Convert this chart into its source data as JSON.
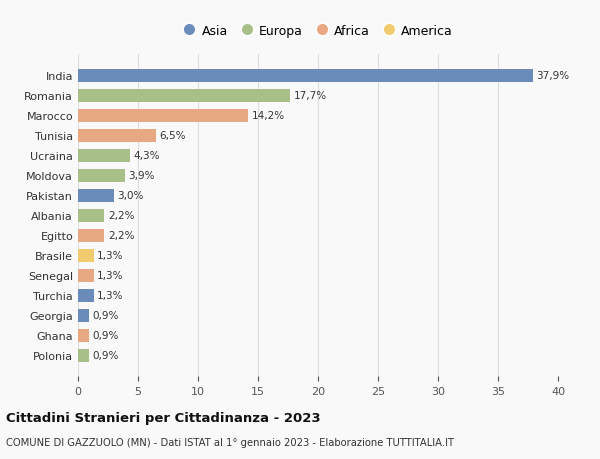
{
  "countries": [
    "India",
    "Romania",
    "Marocco",
    "Tunisia",
    "Ucraina",
    "Moldova",
    "Pakistan",
    "Albania",
    "Egitto",
    "Brasile",
    "Senegal",
    "Turchia",
    "Georgia",
    "Ghana",
    "Polonia"
  ],
  "values": [
    37.9,
    17.7,
    14.2,
    6.5,
    4.3,
    3.9,
    3.0,
    2.2,
    2.2,
    1.3,
    1.3,
    1.3,
    0.9,
    0.9,
    0.9
  ],
  "labels": [
    "37,9%",
    "17,7%",
    "14,2%",
    "6,5%",
    "4,3%",
    "3,9%",
    "3,0%",
    "2,2%",
    "2,2%",
    "1,3%",
    "1,3%",
    "1,3%",
    "0,9%",
    "0,9%",
    "0,9%"
  ],
  "continents": [
    "Asia",
    "Europa",
    "Africa",
    "Africa",
    "Europa",
    "Europa",
    "Asia",
    "Europa",
    "Africa",
    "America",
    "Africa",
    "Asia",
    "Asia",
    "Africa",
    "Europa"
  ],
  "continent_colors": {
    "Asia": "#6b8cba",
    "Europa": "#a8bf8a",
    "Africa": "#e8a882",
    "America": "#f0cc6e"
  },
  "legend_order": [
    "Asia",
    "Europa",
    "Africa",
    "America"
  ],
  "title": "Cittadini Stranieri per Cittadinanza - 2023",
  "subtitle": "COMUNE DI GAZZUOLO (MN) - Dati ISTAT al 1° gennaio 2023 - Elaborazione TUTTITALIA.IT",
  "xlim": [
    0,
    40
  ],
  "xticks": [
    0,
    5,
    10,
    15,
    20,
    25,
    30,
    35,
    40
  ],
  "background_color": "#f9f9f9",
  "grid_color": "#dddddd"
}
